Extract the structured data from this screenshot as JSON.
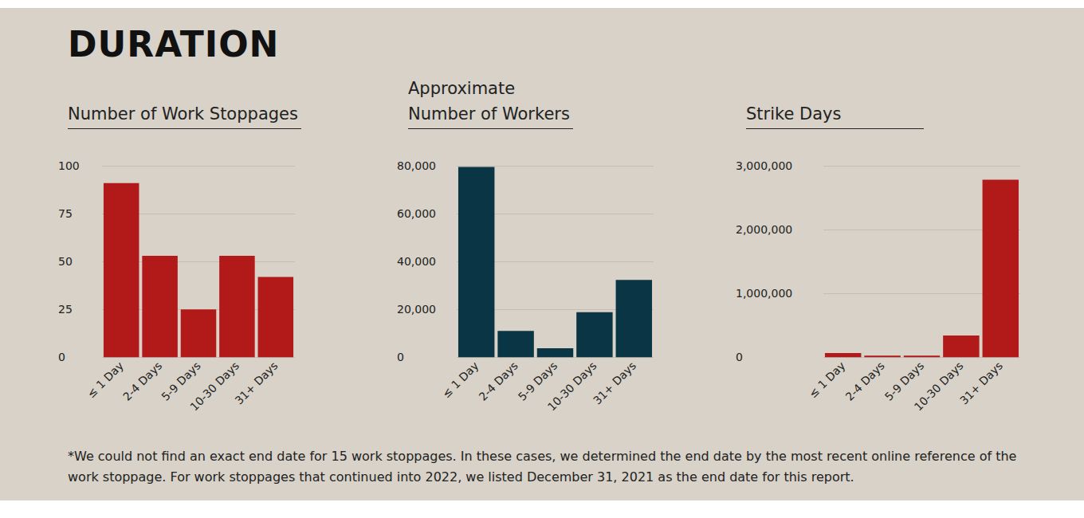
{
  "heading": "DURATION",
  "footnote": "*We could not find an exact end date for 15 work stoppages. In these cases, we determined the end date by the most recent online reference of the work stoppage. For work stoppages that continued into 2022, we listed December 31, 2021 as the end date for this report.",
  "chart_data": [
    {
      "type": "bar",
      "title": "Number of Work Stoppages",
      "categories": [
        "≤ 1 Day",
        "2-4 Days",
        "5-9 Days",
        "10-30 Days",
        "31+ Days"
      ],
      "values": [
        91,
        53,
        25,
        53,
        42
      ],
      "color": "#b21a1a",
      "ylim": [
        0,
        100
      ],
      "yticks": [
        0,
        25,
        50,
        75,
        100
      ],
      "grid": true
    },
    {
      "type": "bar",
      "title": "Approximate\nNumber of Workers",
      "categories": [
        "≤ 1 Day",
        "2-4 Days",
        "5-9 Days",
        "10-30 Days",
        "31+ Days"
      ],
      "values": [
        79500,
        11000,
        3800,
        18800,
        32300
      ],
      "color": "#0a3545",
      "ylim": [
        0,
        80000
      ],
      "yticks": [
        0,
        {
          "value": 20000,
          "label": "20,000"
        },
        {
          "value": 40000,
          "label": "40,000"
        },
        {
          "value": 60000,
          "label": "60,000"
        },
        {
          "value": 80000,
          "label": "80,000"
        }
      ],
      "grid": true
    },
    {
      "type": "bar",
      "title": "Strike Days",
      "categories": [
        "≤ 1 Day",
        "2-4 Days",
        "5-9 Days",
        "10-30 Days",
        "31+ Days"
      ],
      "values": [
        65000,
        25000,
        25000,
        340000,
        2780000
      ],
      "color": "#b21a1a",
      "ylim": [
        0,
        3000000
      ],
      "yticks": [
        0,
        {
          "value": 1000000,
          "label": "1,000,000"
        },
        {
          "value": 2000000,
          "label": "2,000,000"
        },
        {
          "value": 3000000,
          "label": "3,000,000"
        }
      ],
      "grid": true
    }
  ]
}
